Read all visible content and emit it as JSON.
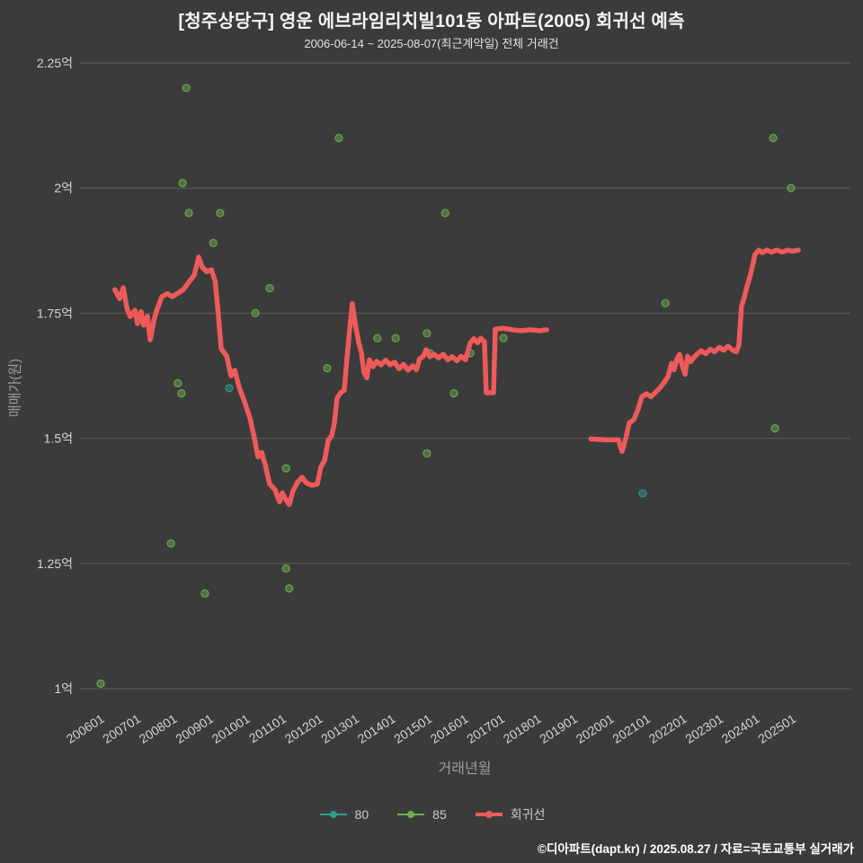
{
  "header": {
    "title": "[청주상당구] 영운 에브라임리치빌101동 아파트(2005) 회귀선 예측",
    "subtitle": "2006-06-14 ~ 2025-08-07(최근계약일) 전체 거래건"
  },
  "footer": {
    "credit": "©디아파트(dapt.kr) / 2025.08.27 / 자료=국토교통부 실거래가"
  },
  "chart_data": {
    "type": "scatter",
    "title": "[청주상당구] 영운 에브라임리치빌101동 아파트(2005) 회귀선 예측",
    "subtitle": "2006-06-14 ~ 2025-08-07(최근계약일) 전체 거래건",
    "xlabel": "거래년월",
    "ylabel": "매매가(원)",
    "xlim": [
      2005.9,
      2025.6
    ],
    "ylim": [
      1.0,
      2.25
    ],
    "grid": "horizontal",
    "legend_position": "bottom-center",
    "colors": {
      "background": "#3b3b3b",
      "grid": "#5c5c5c",
      "tick_text": "#d4d4d4",
      "axis_label": "#9d9d9d",
      "series_80": "#2e9c8f",
      "series_85": "#6fae4e",
      "regression": "#ee5a5a"
    },
    "y_ticks": [
      {
        "value": 2.25,
        "label": "2.25억"
      },
      {
        "value": 2.0,
        "label": "2억"
      },
      {
        "value": 1.75,
        "label": "1.75억"
      },
      {
        "value": 1.5,
        "label": "1.5억"
      },
      {
        "value": 1.25,
        "label": "1.25억"
      },
      {
        "value": 1.0,
        "label": "1억"
      }
    ],
    "x_ticks": [
      {
        "value": 2006,
        "label": "200601"
      },
      {
        "value": 2007,
        "label": "200701"
      },
      {
        "value": 2008,
        "label": "200801"
      },
      {
        "value": 2009,
        "label": "200901"
      },
      {
        "value": 2010,
        "label": "201001"
      },
      {
        "value": 2011,
        "label": "201101"
      },
      {
        "value": 2012,
        "label": "201201"
      },
      {
        "value": 2013,
        "label": "201301"
      },
      {
        "value": 2014,
        "label": "201401"
      },
      {
        "value": 2015,
        "label": "201501"
      },
      {
        "value": 2016,
        "label": "201601"
      },
      {
        "value": 2017,
        "label": "201701"
      },
      {
        "value": 2018,
        "label": "201801"
      },
      {
        "value": 2019,
        "label": "201901"
      },
      {
        "value": 2020,
        "label": "202001"
      },
      {
        "value": 2021,
        "label": "202101"
      },
      {
        "value": 2022,
        "label": "202201"
      },
      {
        "value": 2023,
        "label": "202301"
      },
      {
        "value": 2024,
        "label": "202401"
      },
      {
        "value": 2025,
        "label": "202501"
      }
    ],
    "legend": {
      "items": [
        {
          "name": "80",
          "color_key": "series_80"
        },
        {
          "name": "85",
          "color_key": "series_85"
        },
        {
          "name": "회귀선",
          "color_key": "regression"
        }
      ]
    },
    "series": [
      {
        "name": "80",
        "type": "scatter",
        "color_key": "series_80",
        "points": [
          [
            2009.58,
            1.6
          ],
          [
            2020.94,
            1.39
          ]
        ]
      },
      {
        "name": "85",
        "type": "scatter",
        "color_key": "series_85",
        "points": [
          [
            2008.4,
            2.2
          ],
          [
            2012.59,
            2.1
          ],
          [
            2024.52,
            2.1
          ],
          [
            2008.3,
            2.01
          ],
          [
            2025.01,
            2.0
          ],
          [
            2008.47,
            1.95
          ],
          [
            2009.33,
            1.95
          ],
          [
            2015.51,
            1.95
          ],
          [
            2009.14,
            1.89
          ],
          [
            2010.69,
            1.8
          ],
          [
            2021.56,
            1.77
          ],
          [
            2010.3,
            1.75
          ],
          [
            2012.27,
            1.64
          ],
          [
            2013.65,
            1.7
          ],
          [
            2014.15,
            1.7
          ],
          [
            2015.01,
            1.71
          ],
          [
            2015.09,
            1.67
          ],
          [
            2016.2,
            1.67
          ],
          [
            2017.11,
            1.7
          ],
          [
            2008.17,
            1.61
          ],
          [
            2008.27,
            1.59
          ],
          [
            2015.75,
            1.59
          ],
          [
            2024.57,
            1.52
          ],
          [
            2015.01,
            1.47
          ],
          [
            2011.14,
            1.44
          ],
          [
            2007.98,
            1.29
          ],
          [
            2011.14,
            1.24
          ],
          [
            2011.23,
            1.2
          ],
          [
            2008.91,
            1.19
          ],
          [
            2006.05,
            1.01
          ]
        ]
      }
    ],
    "regression": {
      "name": "회귀선",
      "color_key": "regression",
      "segments": [
        [
          [
            2006.44,
            1.797
          ],
          [
            2006.57,
            1.779
          ],
          [
            2006.67,
            1.801
          ],
          [
            2006.77,
            1.76
          ],
          [
            2006.86,
            1.743
          ],
          [
            2006.99,
            1.756
          ],
          [
            2007.06,
            1.729
          ],
          [
            2007.16,
            1.753
          ],
          [
            2007.23,
            1.726
          ],
          [
            2007.33,
            1.744
          ],
          [
            2007.41,
            1.697
          ],
          [
            2007.51,
            1.736
          ],
          [
            2007.6,
            1.758
          ],
          [
            2007.73,
            1.783
          ],
          [
            2007.88,
            1.789
          ],
          [
            2008.02,
            1.783
          ],
          [
            2008.17,
            1.79
          ],
          [
            2008.32,
            1.797
          ],
          [
            2008.47,
            1.812
          ],
          [
            2008.62,
            1.826
          ],
          [
            2008.74,
            1.862
          ],
          [
            2008.84,
            1.842
          ],
          [
            2008.96,
            1.833
          ],
          [
            2009.09,
            1.837
          ],
          [
            2009.19,
            1.815
          ],
          [
            2009.26,
            1.765
          ],
          [
            2009.36,
            1.679
          ],
          [
            2009.51,
            1.664
          ],
          [
            2009.63,
            1.625
          ],
          [
            2009.73,
            1.636
          ],
          [
            2009.85,
            1.603
          ],
          [
            2010.0,
            1.573
          ],
          [
            2010.15,
            1.54
          ],
          [
            2010.27,
            1.501
          ],
          [
            2010.37,
            1.463
          ],
          [
            2010.47,
            1.472
          ],
          [
            2010.57,
            1.447
          ],
          [
            2010.69,
            1.409
          ],
          [
            2010.84,
            1.397
          ],
          [
            2010.96,
            1.373
          ],
          [
            2011.04,
            1.391
          ],
          [
            2011.14,
            1.377
          ],
          [
            2011.23,
            1.368
          ],
          [
            2011.33,
            1.395
          ],
          [
            2011.46,
            1.413
          ],
          [
            2011.58,
            1.422
          ],
          [
            2011.7,
            1.411
          ],
          [
            2011.85,
            1.406
          ],
          [
            2012.0,
            1.409
          ],
          [
            2012.1,
            1.443
          ],
          [
            2012.2,
            1.456
          ],
          [
            2012.3,
            1.496
          ],
          [
            2012.4,
            1.506
          ],
          [
            2012.47,
            1.531
          ],
          [
            2012.54,
            1.58
          ],
          [
            2012.64,
            1.591
          ],
          [
            2012.74,
            1.596
          ],
          [
            2012.81,
            1.657
          ],
          [
            2012.89,
            1.718
          ],
          [
            2012.96,
            1.769
          ],
          [
            2013.04,
            1.729
          ],
          [
            2013.14,
            1.69
          ],
          [
            2013.21,
            1.672
          ],
          [
            2013.28,
            1.632
          ],
          [
            2013.36,
            1.621
          ],
          [
            2013.43,
            1.657
          ],
          [
            2013.53,
            1.643
          ],
          [
            2013.63,
            1.654
          ],
          [
            2013.75,
            1.647
          ],
          [
            2013.88,
            1.656
          ],
          [
            2014.0,
            1.647
          ],
          [
            2014.12,
            1.652
          ],
          [
            2014.25,
            1.639
          ],
          [
            2014.37,
            1.648
          ],
          [
            2014.49,
            1.636
          ],
          [
            2014.62,
            1.645
          ],
          [
            2014.72,
            1.637
          ],
          [
            2014.81,
            1.659
          ],
          [
            2014.91,
            1.664
          ],
          [
            2014.99,
            1.677
          ],
          [
            2015.09,
            1.663
          ],
          [
            2015.21,
            1.668
          ],
          [
            2015.33,
            1.661
          ],
          [
            2015.46,
            1.668
          ],
          [
            2015.58,
            1.657
          ],
          [
            2015.7,
            1.663
          ],
          [
            2015.83,
            1.655
          ],
          [
            2015.95,
            1.664
          ],
          [
            2016.07,
            1.657
          ],
          [
            2016.2,
            1.691
          ],
          [
            2016.3,
            1.699
          ],
          [
            2016.4,
            1.691
          ],
          [
            2016.49,
            1.7
          ],
          [
            2016.59,
            1.693
          ],
          [
            2016.64,
            1.591
          ],
          [
            2016.84,
            1.591
          ],
          [
            2016.89,
            1.718
          ],
          [
            2017.09,
            1.72
          ],
          [
            2017.36,
            1.717
          ],
          [
            2017.6,
            1.715
          ],
          [
            2017.85,
            1.717
          ],
          [
            2018.1,
            1.715
          ],
          [
            2018.3,
            1.717
          ]
        ],
        [
          [
            2019.51,
            1.499
          ],
          [
            2019.9,
            1.497
          ],
          [
            2020.27,
            1.497
          ],
          [
            2020.37,
            1.474
          ],
          [
            2020.47,
            1.499
          ],
          [
            2020.57,
            1.531
          ],
          [
            2020.69,
            1.537
          ],
          [
            2020.81,
            1.558
          ],
          [
            2020.91,
            1.583
          ],
          [
            2021.04,
            1.589
          ],
          [
            2021.16,
            1.583
          ],
          [
            2021.28,
            1.591
          ],
          [
            2021.41,
            1.601
          ],
          [
            2021.53,
            1.612
          ],
          [
            2021.63,
            1.623
          ],
          [
            2021.73,
            1.65
          ],
          [
            2021.8,
            1.637
          ],
          [
            2021.88,
            1.659
          ],
          [
            2021.95,
            1.668
          ],
          [
            2022.02,
            1.646
          ],
          [
            2022.1,
            1.628
          ],
          [
            2022.17,
            1.664
          ],
          [
            2022.25,
            1.653
          ],
          [
            2022.35,
            1.662
          ],
          [
            2022.44,
            1.669
          ],
          [
            2022.54,
            1.675
          ],
          [
            2022.67,
            1.669
          ],
          [
            2022.79,
            1.678
          ],
          [
            2022.91,
            1.673
          ],
          [
            2023.04,
            1.682
          ],
          [
            2023.16,
            1.676
          ],
          [
            2023.28,
            1.684
          ],
          [
            2023.41,
            1.676
          ],
          [
            2023.51,
            1.673
          ],
          [
            2023.58,
            1.687
          ],
          [
            2023.65,
            1.763
          ],
          [
            2023.73,
            1.783
          ],
          [
            2023.8,
            1.803
          ],
          [
            2023.88,
            1.822
          ],
          [
            2023.95,
            1.844
          ],
          [
            2024.02,
            1.867
          ],
          [
            2024.12,
            1.876
          ],
          [
            2024.22,
            1.871
          ],
          [
            2024.35,
            1.876
          ],
          [
            2024.47,
            1.872
          ],
          [
            2024.62,
            1.876
          ],
          [
            2024.77,
            1.872
          ],
          [
            2024.91,
            1.876
          ],
          [
            2025.06,
            1.874
          ],
          [
            2025.21,
            1.876
          ]
        ]
      ]
    }
  }
}
